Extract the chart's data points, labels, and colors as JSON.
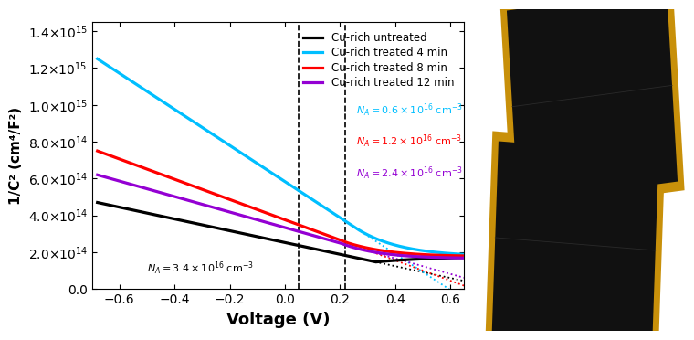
{
  "xlim": [
    -0.7,
    0.65
  ],
  "ylim": [
    0.0,
    1450000000000000.0
  ],
  "xlabel": "Voltage (V)",
  "ylabel": "1/C² (cm⁴/F²)",
  "yticks": [
    0.0,
    200000000000000.0,
    400000000000000.0,
    600000000000000.0,
    800000000000000.0,
    1000000000000000.0,
    1200000000000000.0,
    1400000000000000.0
  ],
  "xticks": [
    -0.6,
    -0.4,
    -0.2,
    0.0,
    0.2,
    0.4,
    0.6
  ],
  "colors": {
    "black": "#000000",
    "cyan": "#00bfff",
    "red": "#ff0000",
    "purple": "#9400d3"
  },
  "legend_labels": [
    "Cu-rich untreated",
    "Cu-rich treated 4 min",
    "Cu-rich treated 8 min",
    "Cu-rich treated 12 min"
  ],
  "dashed_vlines": [
    0.05,
    0.22
  ],
  "photo_bg": "#b8c8dc",
  "figure_width": 7.34,
  "figure_height": 3.52,
  "cell_dark": "#111111",
  "cell_gold": "#c8900a"
}
